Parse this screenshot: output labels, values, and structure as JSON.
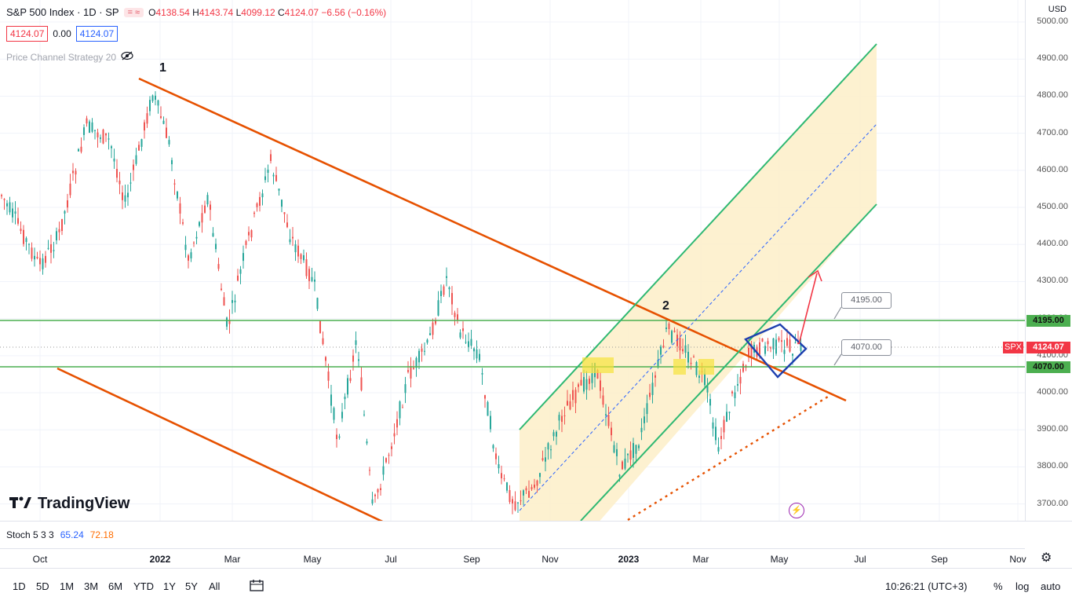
{
  "header": {
    "title": "S&P 500 Index · 1D · SP",
    "ohlc": {
      "o_label": "O",
      "o": "4138.54",
      "h_label": "H",
      "h": "4143.74",
      "l_label": "L",
      "l": "4099.12",
      "c_label": "C",
      "c": "4124.07",
      "change": "−6.56 (−0.16%)"
    },
    "bid": "4124.07",
    "spread": "0.00",
    "ask": "4124.07",
    "indicator": "Price Channel Strategy 20",
    "eye_icon": "eye-off-icon"
  },
  "price_axis": {
    "currency": "USD",
    "ticks": [
      "5000.00",
      "4900.00",
      "4800.00",
      "4700.00",
      "4600.00",
      "4500.00",
      "4400.00",
      "4300.00",
      "4200.00",
      "4100.00",
      "4000.00",
      "3900.00",
      "3800.00",
      "3700.00"
    ],
    "tag_upper": "4195.00",
    "tag_lower": "4070.00",
    "tag_last": "4124.07",
    "symbol_tag": "SPX"
  },
  "annotations": {
    "wave1": "1",
    "wave2": "2",
    "callout_upper": "4195.00",
    "callout_lower": "4070.00"
  },
  "logo": "TradingView",
  "stoch": {
    "label": "Stoch 5 3 3",
    "k": "65.24",
    "d": "72.18"
  },
  "time_axis": [
    "Oct",
    "2022",
    "Mar",
    "May",
    "Jul",
    "Sep",
    "Nov",
    "2023",
    "Mar",
    "May",
    "Jul",
    "Sep",
    "Nov"
  ],
  "bottom_bar": {
    "periods": [
      "1D",
      "5D",
      "1M",
      "3M",
      "6M",
      "YTD",
      "1Y",
      "5Y",
      "All"
    ],
    "clock": "10:26:21 (UTC+3)",
    "percent": "%",
    "log": "log",
    "auto": "auto"
  },
  "colors": {
    "up": "#26a69a",
    "down": "#ef5350",
    "channel": "#ff6d00",
    "trend": "#e65100",
    "green_channel": "#2eb872",
    "level": "#4caf50",
    "diamond": "#1e40af",
    "arrow": "#f23645"
  },
  "chart_data": {
    "type": "candlestick",
    "symbol": "S&P 500 Index",
    "x_range": [
      "Oct 2021",
      "Nov 2023"
    ],
    "ylim": [
      3650,
      5050
    ],
    "levels": [
      4195.0,
      4070.0
    ],
    "last_price": 4124.07
  }
}
